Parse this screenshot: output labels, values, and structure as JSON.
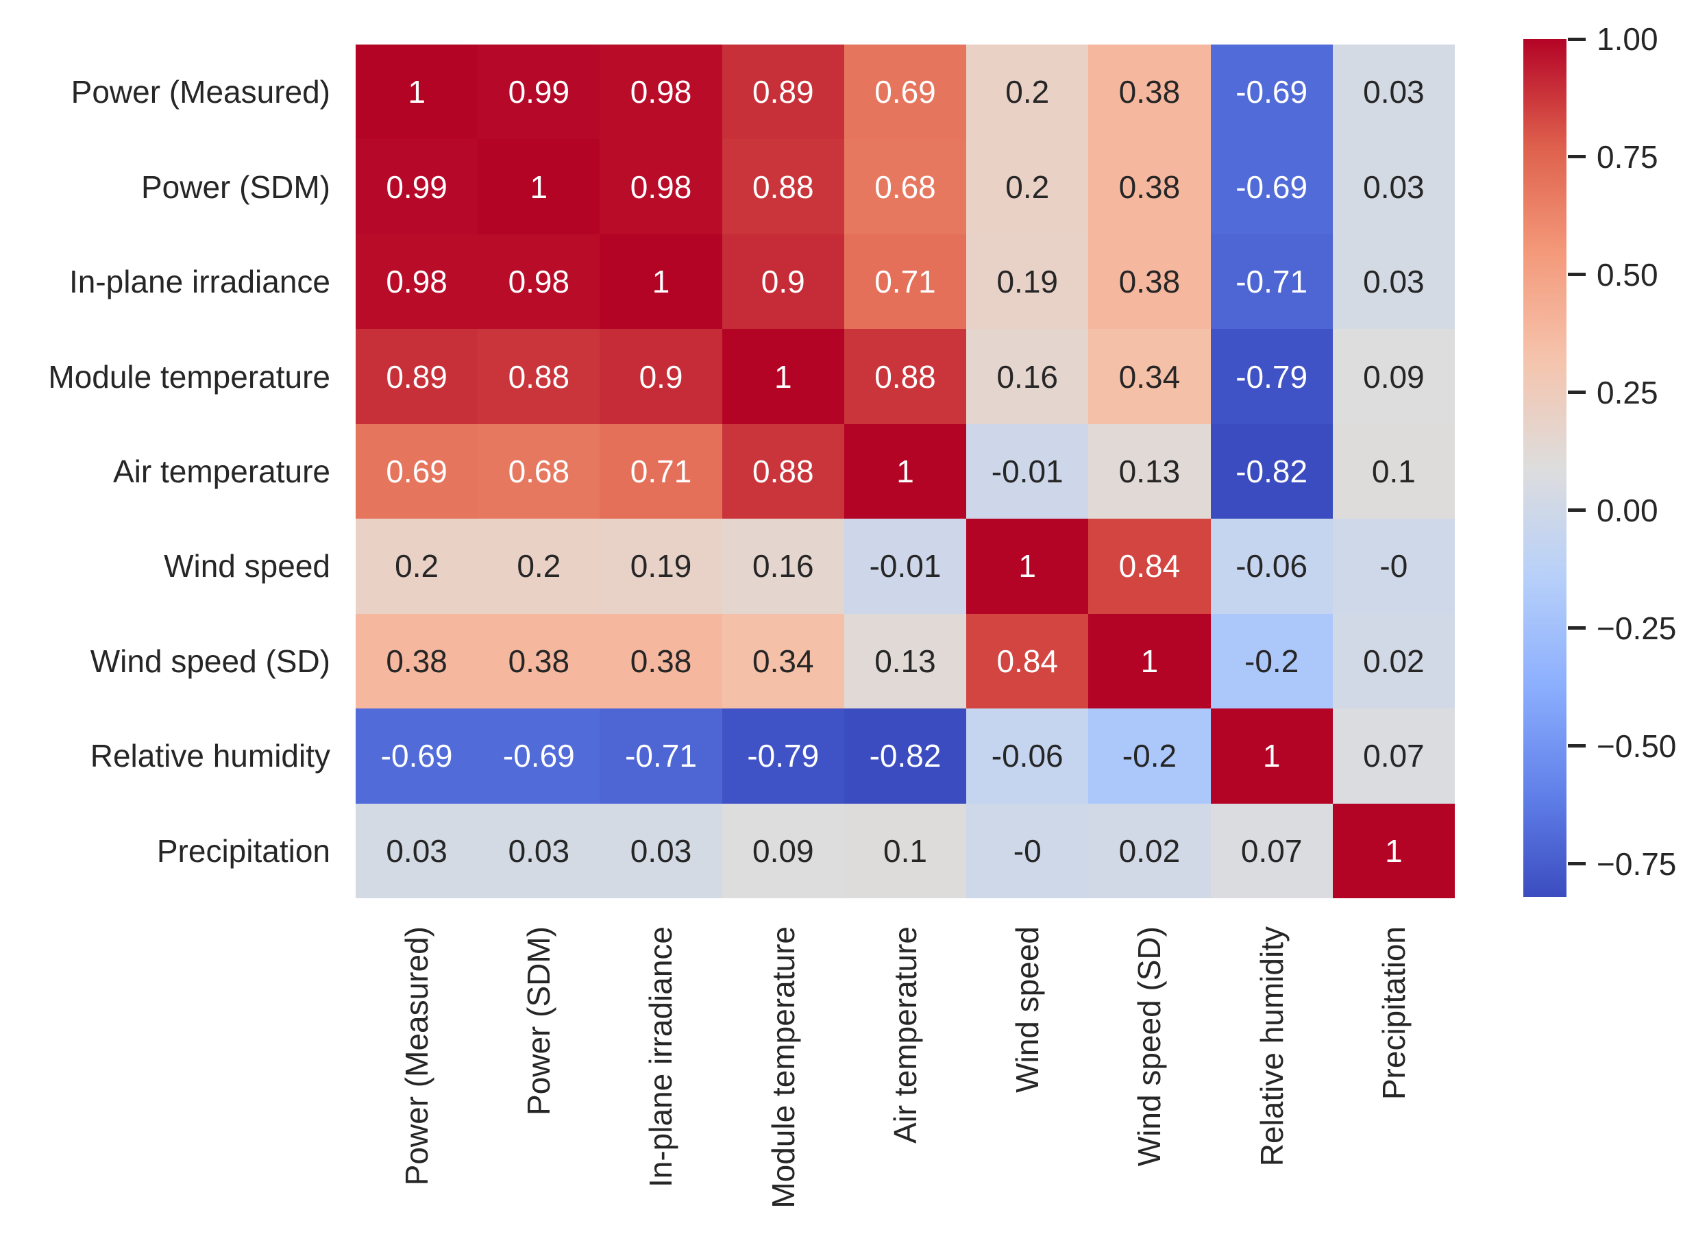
{
  "figure": {
    "background": "#ffffff",
    "text_color": "#262626"
  },
  "chart_data": {
    "type": "heatmap",
    "title": "",
    "xlabel": "",
    "ylabel": "",
    "variables": [
      "Power (Measured)",
      "Power (SDM)",
      "In-plane irradiance",
      "Module temperature",
      "Air temperature",
      "Wind speed",
      "Wind speed (SD)",
      "Relative humidity",
      "Precipitation"
    ],
    "matrix": [
      [
        1,
        0.99,
        0.98,
        0.89,
        0.69,
        0.2,
        0.38,
        -0.69,
        0.03
      ],
      [
        0.99,
        1,
        0.98,
        0.88,
        0.68,
        0.2,
        0.38,
        -0.69,
        0.03
      ],
      [
        0.98,
        0.98,
        1,
        0.9,
        0.71,
        0.19,
        0.38,
        -0.71,
        0.03
      ],
      [
        0.89,
        0.88,
        0.9,
        1,
        0.88,
        0.16,
        0.34,
        -0.79,
        0.09
      ],
      [
        0.69,
        0.68,
        0.71,
        0.88,
        1,
        -0.01,
        0.13,
        -0.82,
        0.1
      ],
      [
        0.2,
        0.2,
        0.19,
        0.16,
        -0.01,
        1,
        0.84,
        -0.06,
        -0.0
      ],
      [
        0.38,
        0.38,
        0.38,
        0.34,
        0.13,
        0.84,
        1,
        -0.2,
        0.02
      ],
      [
        -0.69,
        -0.69,
        -0.71,
        -0.79,
        -0.82,
        -0.06,
        -0.2,
        1,
        0.07
      ],
      [
        0.03,
        0.03,
        0.03,
        0.09,
        0.1,
        -0.0,
        0.02,
        0.07,
        1
      ]
    ],
    "annotations": [
      [
        "1",
        "0.99",
        "0.98",
        "0.89",
        "0.69",
        "0.2",
        "0.38",
        "-0.69",
        "0.03"
      ],
      [
        "0.99",
        "1",
        "0.98",
        "0.88",
        "0.68",
        "0.2",
        "0.38",
        "-0.69",
        "0.03"
      ],
      [
        "0.98",
        "0.98",
        "1",
        "0.9",
        "0.71",
        "0.19",
        "0.38",
        "-0.71",
        "0.03"
      ],
      [
        "0.89",
        "0.88",
        "0.9",
        "1",
        "0.88",
        "0.16",
        "0.34",
        "-0.79",
        "0.09"
      ],
      [
        "0.69",
        "0.68",
        "0.71",
        "0.88",
        "1",
        "-0.01",
        "0.13",
        "-0.82",
        "0.1"
      ],
      [
        "0.2",
        "0.2",
        "0.19",
        "0.16",
        "-0.01",
        "1",
        "0.84",
        "-0.06",
        "-0"
      ],
      [
        "0.38",
        "0.38",
        "0.38",
        "0.34",
        "0.13",
        "0.84",
        "1",
        "-0.2",
        "0.02"
      ],
      [
        "-0.69",
        "-0.69",
        "-0.71",
        "-0.79",
        "-0.82",
        "-0.06",
        "-0.2",
        "1",
        "0.07"
      ],
      [
        "0.03",
        "0.03",
        "0.03",
        "0.09",
        "0.1",
        "-0",
        "0.02",
        "0.07",
        "1"
      ]
    ],
    "colormap": "coolwarm",
    "colormap_anchors": [
      "#3B4CC0",
      "#6282EA",
      "#8DB0FE",
      "#B8D0F9",
      "#DDDDDD",
      "#F5C4AD",
      "#F49A7B",
      "#DE604D",
      "#B40426"
    ],
    "vmin": -0.82,
    "vmax": 1.0,
    "annotation_text_colors": {
      "light": "#ffffff",
      "dark": "#262626"
    },
    "grid_on": false,
    "legend_position": "right-colorbar",
    "colorbar": {
      "tick_color": "#262626",
      "ticks": [
        {
          "label": "1.00",
          "value": 1.0
        },
        {
          "label": "0.75",
          "value": 0.75
        },
        {
          "label": "0.50",
          "value": 0.5
        },
        {
          "label": "0.25",
          "value": 0.25
        },
        {
          "label": "0.00",
          "value": 0.0
        },
        {
          "label": "−0.25",
          "value": -0.25
        },
        {
          "label": "−0.50",
          "value": -0.5
        },
        {
          "label": "−0.75",
          "value": -0.75
        }
      ]
    }
  }
}
